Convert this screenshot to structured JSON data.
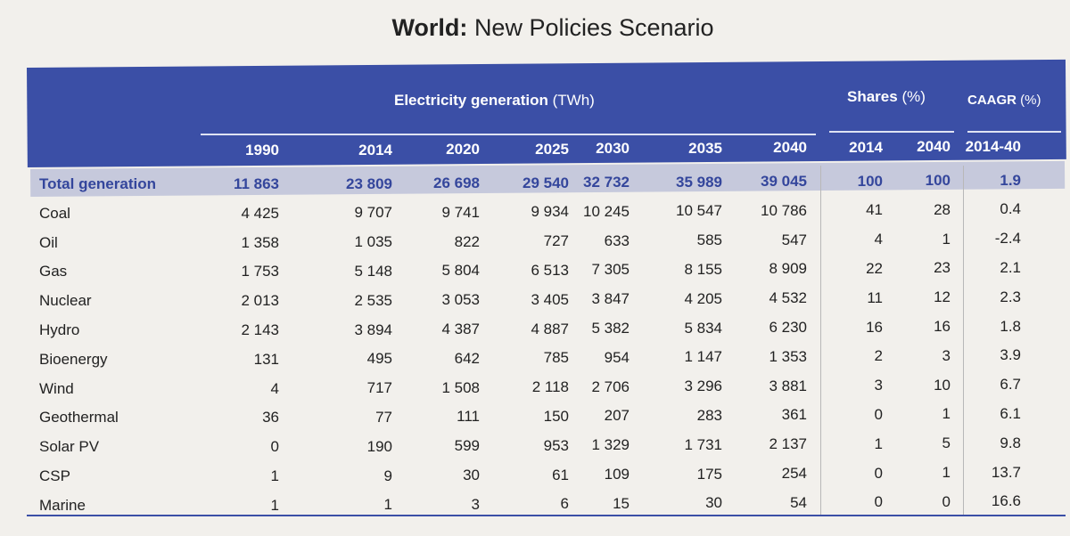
{
  "title": {
    "bold": "World:",
    "rest": "New Policies Scenario"
  },
  "header": {
    "group1": "Electricity generation",
    "group1_unit": "(TWh)",
    "group2": "Shares",
    "group2_unit": "(%)",
    "group3": "CAAGR",
    "group3_unit": "(%)",
    "years": [
      "1990",
      "2014",
      "2020",
      "2025",
      "2030",
      "2035",
      "2040",
      "2014",
      "2040",
      "2014-40"
    ]
  },
  "rows": [
    {
      "label": "Total generation",
      "values": [
        "11 863",
        "23 809",
        "26 698",
        "29 540",
        "32 732",
        "35 989",
        "39 045",
        "100",
        "100",
        "1.9"
      ]
    },
    {
      "label": "Coal",
      "values": [
        "4 425",
        "9 707",
        "9 741",
        "9 934",
        "10 245",
        "10 547",
        "10 786",
        "41",
        "28",
        "0.4"
      ]
    },
    {
      "label": "Oil",
      "values": [
        "1 358",
        "1 035",
        "822",
        "727",
        "633",
        "585",
        "547",
        "4",
        "1",
        "-2.4"
      ]
    },
    {
      "label": "Gas",
      "values": [
        "1 753",
        "5 148",
        "5 804",
        "6 513",
        "7 305",
        "8 155",
        "8 909",
        "22",
        "23",
        "2.1"
      ]
    },
    {
      "label": "Nuclear",
      "values": [
        "2 013",
        "2 535",
        "3 053",
        "3 405",
        "3 847",
        "4 205",
        "4 532",
        "11",
        "12",
        "2.3"
      ]
    },
    {
      "label": "Hydro",
      "values": [
        "2 143",
        "3 894",
        "4 387",
        "4 887",
        "5 382",
        "5 834",
        "6 230",
        "16",
        "16",
        "1.8"
      ]
    },
    {
      "label": "Bioenergy",
      "values": [
        "131",
        "495",
        "642",
        "785",
        "954",
        "1 147",
        "1 353",
        "2",
        "3",
        "3.9"
      ]
    },
    {
      "label": "Wind",
      "values": [
        "4",
        "717",
        "1 508",
        "2 118",
        "2 706",
        "3 296",
        "3 881",
        "3",
        "10",
        "6.7"
      ]
    },
    {
      "label": "Geothermal",
      "values": [
        "36",
        "77",
        "111",
        "150",
        "207",
        "283",
        "361",
        "0",
        "1",
        "6.1"
      ]
    },
    {
      "label": "Solar PV",
      "values": [
        "0",
        "190",
        "599",
        "953",
        "1 329",
        "1 731",
        "2 137",
        "1",
        "5",
        "9.8"
      ]
    },
    {
      "label": "CSP",
      "values": [
        "1",
        "9",
        "30",
        "61",
        "109",
        "175",
        "254",
        "0",
        "1",
        "13.7"
      ]
    },
    {
      "label": "Marine",
      "values": [
        "1",
        "1",
        "3",
        "6",
        "15",
        "30",
        "54",
        "0",
        "0",
        "16.6"
      ]
    }
  ]
}
